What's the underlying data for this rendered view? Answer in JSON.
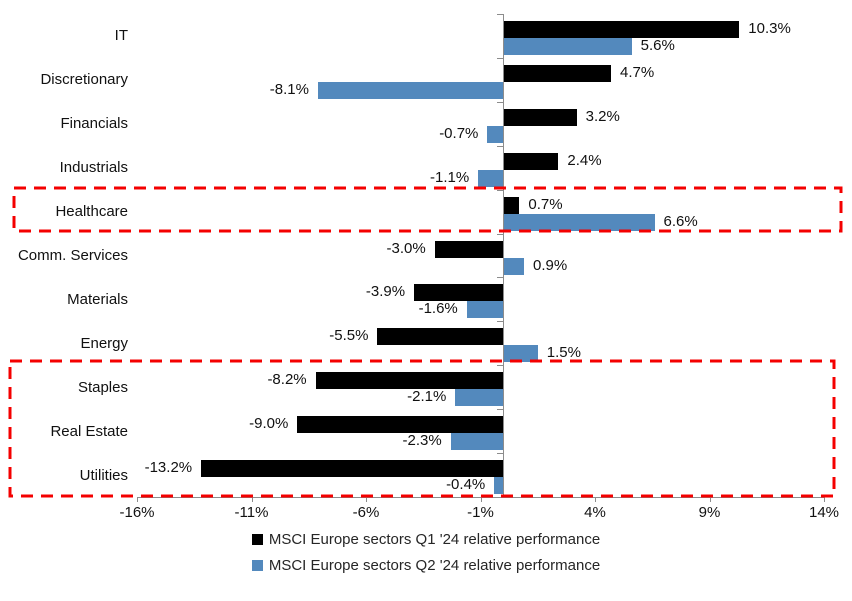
{
  "chart_data": {
    "type": "bar",
    "orientation": "horizontal",
    "categories": [
      "IT",
      "Discretionary",
      "Financials",
      "Industrials",
      "Healthcare",
      "Comm. Services",
      "Materials",
      "Energy",
      "Staples",
      "Real Estate",
      "Utilities"
    ],
    "series": [
      {
        "name": "MSCI Europe sectors Q1 '24 relative performance",
        "color": "#000000",
        "values": [
          10.3,
          4.7,
          3.2,
          2.4,
          0.7,
          -3.0,
          -3.9,
          -5.5,
          -8.2,
          -9.0,
          -13.2
        ],
        "data_labels": [
          "10.3%",
          "4.7%",
          "3.2%",
          "2.4%",
          "0.7%",
          "-3.0%",
          "-3.9%",
          "-5.5%",
          "-8.2%",
          "-9.0%",
          "-13.2%"
        ]
      },
      {
        "name": "MSCI Europe sectors Q2 '24 relative performance",
        "color": "#5389BD",
        "values": [
          5.6,
          -8.1,
          -0.7,
          -1.1,
          6.6,
          0.9,
          -1.6,
          1.5,
          -2.1,
          -2.3,
          -0.4
        ],
        "data_labels": [
          "5.6%",
          "-8.1%",
          "-0.7%",
          "-1.1%",
          "6.6%",
          "0.9%",
          "-1.6%",
          "1.5%",
          "-2.1%",
          "-2.3%",
          "-0.4%"
        ]
      }
    ],
    "title": "",
    "xlabel": "",
    "ylabel": "",
    "xlim": [
      -16,
      14
    ],
    "x_ticks": [
      {
        "value": -16,
        "label": "-16%"
      },
      {
        "value": -11,
        "label": "-11%"
      },
      {
        "value": -6,
        "label": "-6%"
      },
      {
        "value": -1,
        "label": "-1%"
      },
      {
        "value": 4,
        "label": "4%"
      },
      {
        "value": 9,
        "label": "9%"
      },
      {
        "value": 14,
        "label": "14%"
      }
    ],
    "grid": false,
    "legend_position": "bottom",
    "axis_color": "#8c8c8c",
    "annotations": [
      {
        "type": "highlight-box",
        "name": "healthcare-highlight",
        "categories": [
          "Healthcare"
        ],
        "color": "#F40000",
        "style": "dashed"
      },
      {
        "type": "highlight-box",
        "name": "staples-realestate-utilities-highlight",
        "categories": [
          "Staples",
          "Real Estate",
          "Utilities"
        ],
        "color": "#F40000",
        "style": "dashed"
      }
    ]
  },
  "legend": {
    "items": [
      {
        "label": "MSCI Europe sectors Q1 '24 relative performance",
        "color": "#000000"
      },
      {
        "label": "MSCI Europe sectors Q2 '24 relative performance",
        "color": "#5389BD"
      }
    ]
  }
}
